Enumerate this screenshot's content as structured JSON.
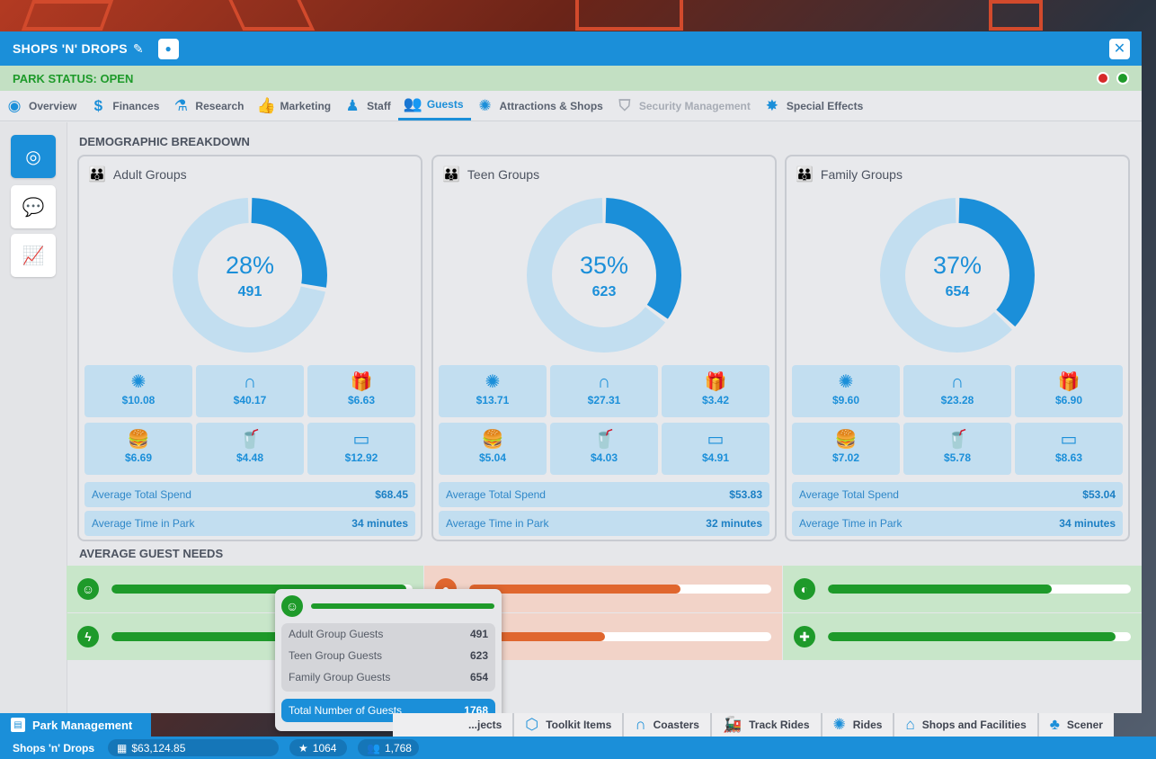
{
  "window": {
    "title": "SHOPS 'N' DROPS",
    "pencil_icon": "pencil-icon",
    "pin_icon": "map-pin-icon",
    "close_icon": "close-icon"
  },
  "status": {
    "text": "PARK STATUS: OPEN",
    "closed_color": "#d62a2a",
    "open_color": "#1e9a2a"
  },
  "tabs": [
    {
      "label": "Overview",
      "icon": "eye-icon"
    },
    {
      "label": "Finances",
      "icon": "dollar-icon"
    },
    {
      "label": "Research",
      "icon": "flask-icon"
    },
    {
      "label": "Marketing",
      "icon": "thumbs-up-icon"
    },
    {
      "label": "Staff",
      "icon": "staff-icon"
    },
    {
      "label": "Guests",
      "icon": "guests-icon",
      "active": true
    },
    {
      "label": "Attractions & Shops",
      "icon": "ferris-wheel-icon"
    },
    {
      "label": "Security Management",
      "icon": "shield-icon",
      "disabled": true
    },
    {
      "label": "Special Effects",
      "icon": "fireworks-icon"
    }
  ],
  "side": {
    "items": [
      "demographics-icon",
      "chat-icon",
      "line-graph-icon"
    ]
  },
  "demographics": {
    "heading": "DEMOGRAPHIC BREAKDOWN",
    "groups": [
      {
        "title": "Adult Groups",
        "percent": "28%",
        "count": "491",
        "fraction": 0.28,
        "spend": [
          "$10.08",
          "$40.17",
          "$6.63",
          "$6.69",
          "$4.48",
          "$12.92"
        ],
        "avg_spend_label": "Average Total Spend",
        "avg_spend": "$68.45",
        "avg_time_label": "Average Time in Park",
        "avg_time": "34 minutes"
      },
      {
        "title": "Teen Groups",
        "percent": "35%",
        "count": "623",
        "fraction": 0.35,
        "spend": [
          "$13.71",
          "$27.31",
          "$3.42",
          "$5.04",
          "$4.03",
          "$4.91"
        ],
        "avg_spend_label": "Average Total Spend",
        "avg_spend": "$53.83",
        "avg_time_label": "Average Time in Park",
        "avg_time": "32 minutes"
      },
      {
        "title": "Family Groups",
        "percent": "37%",
        "count": "654",
        "fraction": 0.37,
        "spend": [
          "$9.60",
          "$23.28",
          "$6.90",
          "$7.02",
          "$5.78",
          "$8.63"
        ],
        "avg_spend_label": "Average Total Spend",
        "avg_spend": "$53.04",
        "avg_time_label": "Average Time in Park",
        "avg_time": "34 minutes"
      }
    ],
    "spend_icons": [
      "ferris-wheel-icon",
      "coaster-icon",
      "gift-icon",
      "burger-icon",
      "drink-icon",
      "card-icon"
    ]
  },
  "needs": {
    "heading": "AVERAGE GUEST NEEDS",
    "items": [
      {
        "icon": "happy-icon",
        "level": 0.98,
        "status": "good"
      },
      {
        "icon": "hunger-icon",
        "level": 0.7,
        "status": "bad"
      },
      {
        "icon": "toilet-icon",
        "level": 0.74,
        "status": "good"
      },
      {
        "icon": "energy-icon",
        "level": 0.97,
        "status": "good"
      },
      {
        "icon": "thirst-icon",
        "level": 0.45,
        "status": "bad"
      },
      {
        "icon": "health-icon",
        "level": 0.95,
        "status": "good"
      }
    ]
  },
  "tooltip": {
    "icon": "happy-icon",
    "rows": [
      {
        "label": "Adult Group Guests",
        "value": "491"
      },
      {
        "label": "Teen Group Guests",
        "value": "623"
      },
      {
        "label": "Family Group Guests",
        "value": "654"
      }
    ],
    "total_label": "Total Number of Guests",
    "total_value": "1768"
  },
  "bottom": {
    "park_management": "Park Management",
    "hidden_tab_fragment": "...jects",
    "tabs": [
      {
        "label": "Toolkit Items",
        "icon": "cube-icon"
      },
      {
        "label": "Coasters",
        "icon": "coaster-icon"
      },
      {
        "label": "Track Rides",
        "icon": "train-icon"
      },
      {
        "label": "Rides",
        "icon": "ferris-wheel-icon"
      },
      {
        "label": "Shops and Facilities",
        "icon": "shop-icon"
      },
      {
        "label": "Scener",
        "icon": "tree-icon"
      }
    ],
    "park_name": "Shops 'n' Drops",
    "money": "$63,124.85",
    "rating": "1064",
    "guests": "1,768"
  }
}
